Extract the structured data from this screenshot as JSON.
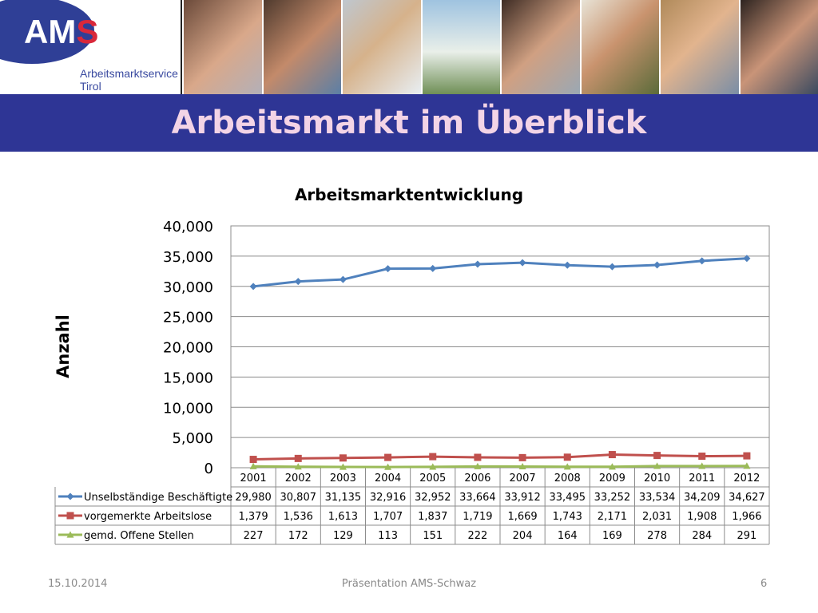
{
  "logo": {
    "brand": "AMS",
    "subtitle_line1": "Arbeitsmarktservice",
    "subtitle_line2": "Tirol",
    "colors": {
      "blue": "#2f3f96",
      "red": "#d9283a",
      "light": "#ffffff"
    }
  },
  "header": {
    "photos": [
      "photo-mother-child",
      "photo-guitarist",
      "photo-woman-blonde",
      "photo-binoculars",
      "photo-woman-phone",
      "photo-young-man",
      "photo-woman-smiling",
      "photo-woman-dark-hair"
    ]
  },
  "slide": {
    "title": "Arbeitsmarkt im Überblick",
    "title_color": "#f3d4e6",
    "bar_color": "#2e3595"
  },
  "chart_data": {
    "type": "line",
    "title": "Arbeitsmarktentwicklung",
    "ylabel": "Anzahl",
    "xlabel": "",
    "ylim": [
      0,
      40000
    ],
    "yticks": [
      "0",
      "5,000",
      "10,000",
      "15,000",
      "20,000",
      "25,000",
      "30,000",
      "35,000",
      "40,000"
    ],
    "grid": true,
    "legend": "data-table-below",
    "categories": [
      "2001",
      "2002",
      "2003",
      "2004",
      "2005",
      "2006",
      "2007",
      "2008",
      "2009",
      "2010",
      "2011",
      "2012"
    ],
    "series": [
      {
        "name": "Unselbständige Beschäftigte",
        "color": "#4f81bd",
        "marker": "diamond",
        "values": [
          29980,
          30807,
          31135,
          32916,
          32952,
          33664,
          33912,
          33495,
          33252,
          33534,
          34209,
          34627
        ],
        "labels": [
          "29,980",
          "30,807",
          "31,135",
          "32,916",
          "32,952",
          "33,664",
          "33,912",
          "33,495",
          "33,252",
          "33,534",
          "34,209",
          "34,627"
        ]
      },
      {
        "name": "vorgemerkte Arbeitslose",
        "color": "#c0504d",
        "marker": "square",
        "values": [
          1379,
          1536,
          1613,
          1707,
          1837,
          1719,
          1669,
          1743,
          2171,
          2031,
          1908,
          1966
        ],
        "labels": [
          "1,379",
          "1,536",
          "1,613",
          "1,707",
          "1,837",
          "1,719",
          "1,669",
          "1,743",
          "2,171",
          "2,031",
          "1,908",
          "1,966"
        ]
      },
      {
        "name": "gemd. Offene Stellen",
        "color": "#9bbb59",
        "marker": "triangle",
        "values": [
          227,
          172,
          129,
          113,
          151,
          222,
          204,
          164,
          169,
          278,
          284,
          291
        ],
        "labels": [
          "227",
          "172",
          "129",
          "113",
          "151",
          "222",
          "204",
          "164",
          "169",
          "278",
          "284",
          "291"
        ]
      }
    ]
  },
  "footer": {
    "date": "15.10.2014",
    "center": "Präsentation AMS-Schwaz",
    "page": "6"
  }
}
